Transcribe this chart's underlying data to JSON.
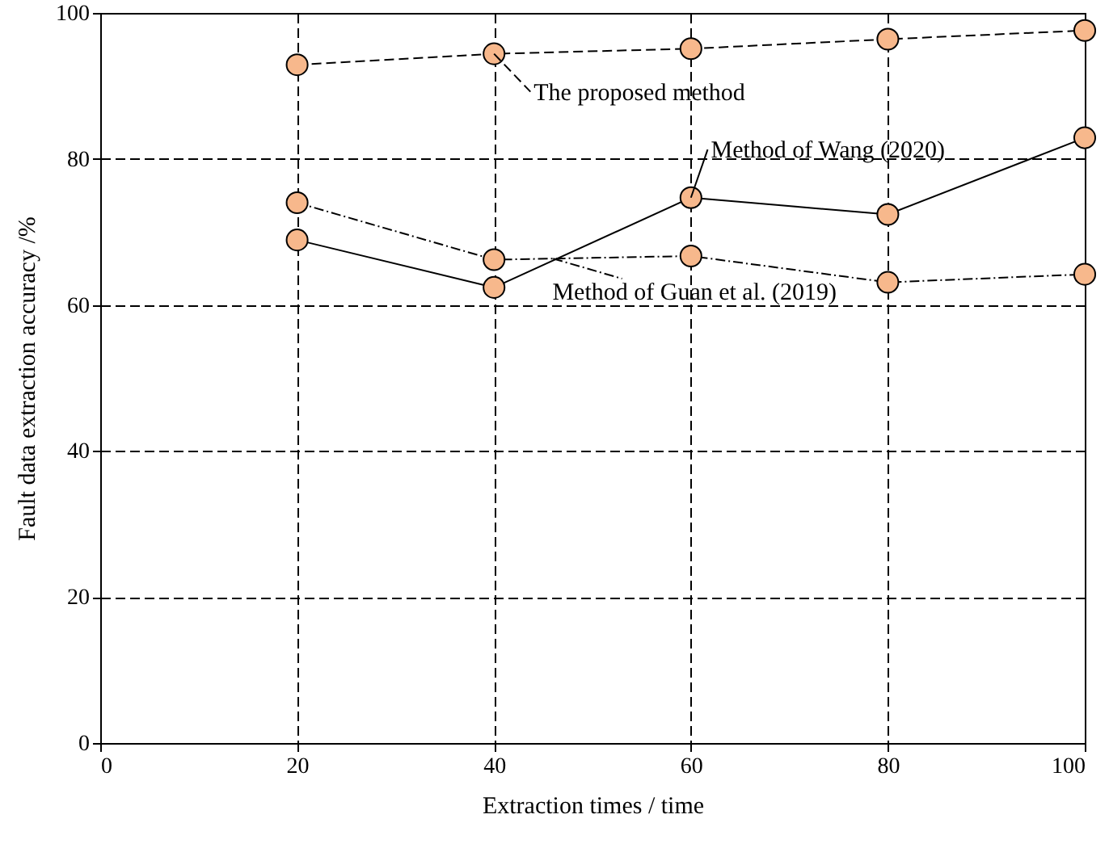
{
  "chart_data": {
    "type": "line",
    "xlabel": "Extraction times / time",
    "ylabel": "Fault data extraction accuracy /%",
    "x": [
      20,
      40,
      60,
      80,
      100
    ],
    "series": [
      {
        "name": "The proposed method",
        "color": "#f7b88c",
        "line_style": "dashed",
        "values": [
          92.9,
          94.4,
          95.1,
          96.4,
          97.6
        ]
      },
      {
        "name": "Method of Wang (2020)",
        "color": "#f7b88c",
        "line_style": "solid",
        "values": [
          68.9,
          62.4,
          74.7,
          72.4,
          82.9
        ]
      },
      {
        "name": "Method of Guan et al. (2019)",
        "color": "#f7b88c",
        "line_style": "dotted",
        "values": [
          74.0,
          66.2,
          66.7,
          63.1,
          64.2
        ]
      }
    ],
    "xlim": [
      0,
      100
    ],
    "xticks": [
      0,
      20,
      40,
      60,
      80,
      100
    ],
    "ylim": [
      0,
      100
    ],
    "yticks": [
      0,
      20,
      40,
      60,
      80,
      100
    ],
    "grid": true,
    "marker": "circle"
  }
}
